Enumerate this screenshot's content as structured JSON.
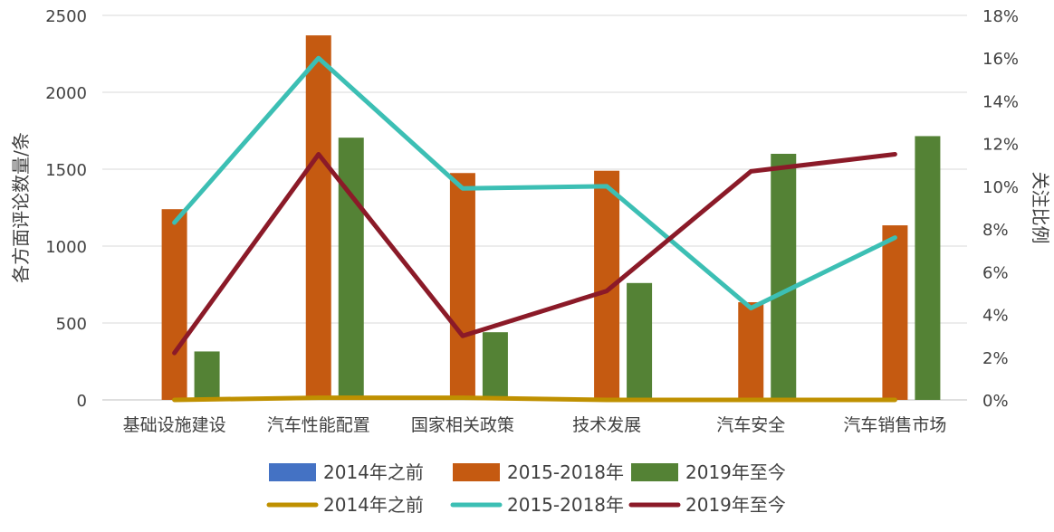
{
  "chart_data": {
    "type": "bar+line",
    "categories": [
      "基础设施建设",
      "汽车性能配置",
      "国家相关政策",
      "技术发展",
      "汽车安全",
      "汽车销售市场"
    ],
    "bar_series": [
      {
        "name": "2014年之前",
        "color": "#4472C4",
        "values": [
          0,
          0,
          0,
          0,
          0,
          0
        ]
      },
      {
        "name": "2015-2018年",
        "color": "#C55A11",
        "values": [
          1240,
          2370,
          1475,
          1490,
          635,
          1135
        ]
      },
      {
        "name": "2019年至今",
        "color": "#548235",
        "values": [
          315,
          1705,
          440,
          760,
          1600,
          1715
        ]
      }
    ],
    "line_series": [
      {
        "name": "2014年之前",
        "color": "#BF9000",
        "values": [
          0.0,
          0.1,
          0.1,
          0.0,
          0.0,
          0.0
        ]
      },
      {
        "name": "2015-2018年",
        "color": "#3CBFB4",
        "values": [
          8.3,
          16.0,
          9.9,
          10.0,
          4.3,
          7.6
        ]
      },
      {
        "name": "2019年至今",
        "color": "#8B1A28",
        "values": [
          2.2,
          11.5,
          3.0,
          5.1,
          10.7,
          11.5
        ]
      }
    ],
    "y_left": {
      "label": "各方面评论数量/条",
      "min": 0,
      "max": 2500,
      "ticks": [
        "0",
        "500",
        "1000",
        "1500",
        "2000",
        "2500"
      ]
    },
    "y_right": {
      "label": "关注比例",
      "min": 0,
      "max": 18,
      "ticks": [
        "0%",
        "2%",
        "4%",
        "6%",
        "8%",
        "10%",
        "12%",
        "14%",
        "16%",
        "18%"
      ]
    },
    "grid": true,
    "legend_position": "bottom"
  }
}
